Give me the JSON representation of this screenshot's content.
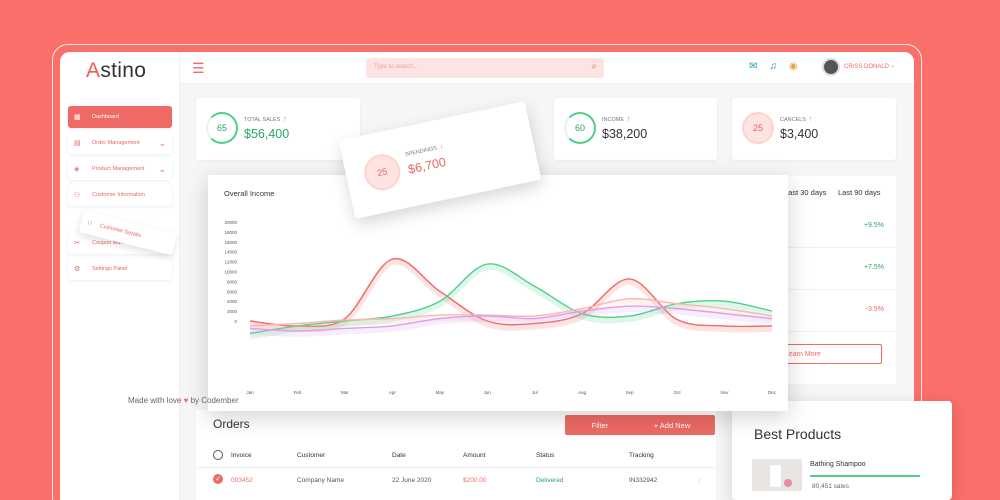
{
  "app": {
    "logo_first": "A",
    "logo_rest": "stino"
  },
  "sidebar": {
    "items": [
      {
        "label": "Dashboard",
        "icon": "dashboard-icon",
        "active": true
      },
      {
        "label": "Order Management",
        "icon": "orders-icon"
      },
      {
        "label": "Product Management",
        "icon": "product-icon"
      },
      {
        "label": "Customer Information",
        "icon": "customer-icon"
      },
      {
        "label": "Coupon Ma...",
        "icon": "coupon-icon"
      },
      {
        "label": "Settings Panel",
        "icon": "settings-icon"
      }
    ],
    "dragged_item": "Customer Details"
  },
  "topbar": {
    "search_placeholder": "Type to search...",
    "user_name": "CRISS DONALD"
  },
  "kpis": {
    "total_sales": {
      "label": "TOTAL SALES",
      "ring": "65",
      "value": "$56,400"
    },
    "spendings": {
      "label": "SPENDINGS",
      "ring": "25",
      "value": "$6,700"
    },
    "income": {
      "label": "INCOME",
      "ring": "60",
      "value": "$38,200"
    },
    "cancels": {
      "label": "CANCELS",
      "ring": "25",
      "value": "$3,400"
    }
  },
  "right_panel": {
    "tab1": "Last 30 days",
    "tab2": "Last 90 days",
    "rows": [
      "+9.5%",
      "+7.5%",
      "-3.5%"
    ],
    "learn_more": "Learn More"
  },
  "chart_data": {
    "type": "line",
    "title": "Overall Income",
    "categories": [
      "Jan",
      "Feb",
      "Mar",
      "Apr",
      "May",
      "Jun",
      "Jul",
      "Aug",
      "Sep",
      "Oct",
      "Nov",
      "Dec"
    ],
    "yticks": [
      "20000",
      "18000",
      "16000",
      "14000",
      "12000",
      "10000",
      "8000",
      "6000",
      "4000",
      "2000",
      "0"
    ],
    "ylim": [
      -5000,
      20000
    ],
    "series": [
      {
        "color": "#ef6a65",
        "values": [
          0,
          -1000,
          500,
          12500,
          6000,
          0,
          -500,
          1500,
          8500,
          300,
          -1000,
          -1000
        ]
      },
      {
        "color": "#4fd08a",
        "values": [
          -2500,
          -1000,
          0,
          1000,
          4000,
          11500,
          7000,
          1500,
          1000,
          3500,
          4000,
          2000
        ]
      },
      {
        "color": "#f7b7b4",
        "values": [
          -1000,
          -500,
          200,
          500,
          1200,
          1200,
          1000,
          2500,
          4500,
          3500,
          2500,
          1000
        ]
      },
      {
        "color": "#d9a0e8",
        "values": [
          -1500,
          -2000,
          -1500,
          -1000,
          500,
          1000,
          500,
          2000,
          3000,
          2500,
          1500,
          500
        ]
      }
    ]
  },
  "made_with": {
    "text1": "Made with love",
    "text2": "by Codember"
  },
  "orders": {
    "title": "Orders",
    "filter": "Filter",
    "add_new": "+ Add New",
    "headers": [
      "Invoice",
      "Customer",
      "Date",
      "Amount",
      "Status",
      "Tracking"
    ],
    "row": [
      "003452",
      "Company Name",
      "22 June 2020",
      "$200.00",
      "Delivered",
      "IN332942"
    ]
  },
  "best_products": {
    "title": "Best Products",
    "product_name": "Bathing Shampoo",
    "sales": "80,451 sales"
  }
}
